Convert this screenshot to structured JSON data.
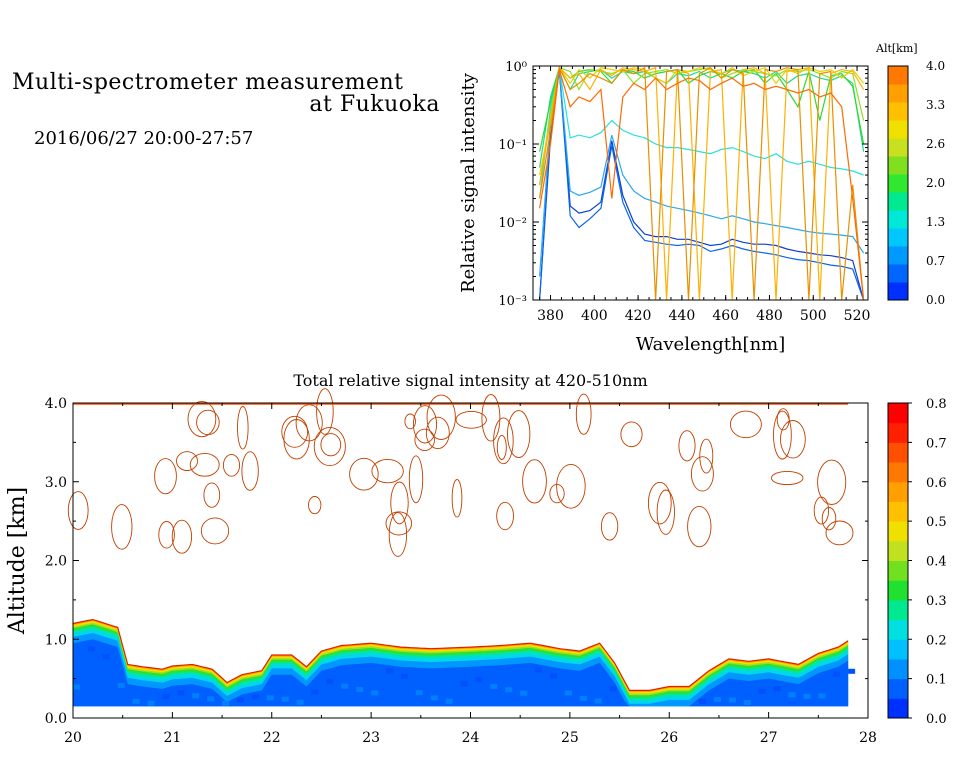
{
  "header": {
    "title_line1": "Multi-spectrometer measurement",
    "title_line2": "at Fukuoka",
    "date_range": "2016/06/27 20:00-27:57"
  },
  "chart_data": [
    {
      "type": "line",
      "title": "",
      "xlabel": "Wavelength[nm]",
      "ylabel": "Relative signal intensity",
      "yscale": "log",
      "xlim": [
        372,
        525
      ],
      "ylim": [
        0.001,
        1
      ],
      "x_ticks": [
        "380",
        "400",
        "420",
        "440",
        "460",
        "480",
        "500",
        "520"
      ],
      "y_ticks": [
        "10⁻³",
        "10⁻²",
        "10⁻¹",
        "10⁰"
      ],
      "colorbar": {
        "label": "Alt[km]",
        "ticks": [
          "0.0",
          "0.7",
          "1.3",
          "2.0",
          "2.6",
          "3.3",
          "4.0"
        ],
        "range": [
          0,
          4
        ],
        "colors": [
          "#0030ff",
          "#0066ff",
          "#0099ff",
          "#00c8ff",
          "#00e8d8",
          "#00e890",
          "#30e830",
          "#80e020",
          "#c8e020",
          "#f0e000",
          "#ffc000",
          "#ffa000",
          "#ff7800"
        ]
      },
      "x": [
        375,
        380,
        384,
        389,
        393,
        398,
        403,
        408,
        413,
        418,
        423,
        428,
        433,
        438,
        443,
        448,
        453,
        458,
        463,
        468,
        473,
        478,
        483,
        488,
        493,
        498,
        503,
        508,
        513,
        518,
        523
      ],
      "series": [
        {
          "altitude_km": 0.2,
          "color": "#0a3fd8",
          "values": [
            0.001,
            0.12,
            0.9,
            0.016,
            0.013,
            0.014,
            0.018,
            0.11,
            0.022,
            0.01,
            0.007,
            0.0065,
            0.0065,
            0.006,
            0.006,
            0.0055,
            0.005,
            0.0052,
            0.006,
            0.0055,
            0.0052,
            0.0052,
            0.005,
            0.0045,
            0.0042,
            0.004,
            0.0038,
            0.0037,
            0.0035,
            0.0032,
            0.001
          ]
        },
        {
          "altitude_km": 0.4,
          "color": "#0a66e8",
          "values": [
            0.001,
            0.15,
            0.9,
            0.012,
            0.0085,
            0.011,
            0.015,
            0.095,
            0.018,
            0.0085,
            0.0058,
            0.0055,
            0.0052,
            0.005,
            0.0052,
            0.005,
            0.0042,
            0.0045,
            0.005,
            0.0045,
            0.0042,
            0.004,
            0.0038,
            0.0035,
            0.0033,
            0.0032,
            0.003,
            0.0028,
            0.0027,
            0.0025,
            0.001
          ]
        },
        {
          "altitude_km": 0.9,
          "color": "#2aa8f0",
          "values": [
            0.002,
            0.2,
            0.92,
            0.025,
            0.022,
            0.024,
            0.028,
            0.13,
            0.04,
            0.025,
            0.02,
            0.018,
            0.016,
            0.015,
            0.014,
            0.013,
            0.012,
            0.011,
            0.012,
            0.011,
            0.01,
            0.0095,
            0.009,
            0.0085,
            0.008,
            0.0075,
            0.0072,
            0.007,
            0.0068,
            0.0065,
            0.004
          ]
        },
        {
          "altitude_km": 1.3,
          "color": "#2ae0e0",
          "values": [
            0.02,
            0.3,
            0.95,
            0.12,
            0.13,
            0.12,
            0.14,
            0.2,
            0.15,
            0.13,
            0.12,
            0.1,
            0.09,
            0.09,
            0.085,
            0.08,
            0.075,
            0.085,
            0.09,
            0.08,
            0.07,
            0.065,
            0.075,
            0.06,
            0.055,
            0.06,
            0.055,
            0.05,
            0.048,
            0.045,
            0.04
          ]
        },
        {
          "altitude_km": 1.7,
          "color": "#20d890",
          "values": [
            0.05,
            0.4,
            0.95,
            0.5,
            0.8,
            0.85,
            0.9,
            0.7,
            0.85,
            0.8,
            0.85,
            0.7,
            0.6,
            0.8,
            0.75,
            0.85,
            0.7,
            0.8,
            0.9,
            0.85,
            0.8,
            0.7,
            0.85,
            0.6,
            0.75,
            0.8,
            0.7,
            0.65,
            0.75,
            0.6,
            0.08
          ]
        },
        {
          "altitude_km": 2.0,
          "color": "#30d830",
          "values": [
            0.08,
            0.35,
            0.95,
            0.7,
            0.85,
            0.9,
            0.85,
            0.6,
            0.9,
            0.85,
            0.7,
            0.8,
            0.85,
            0.9,
            0.6,
            0.75,
            0.85,
            0.8,
            0.7,
            0.85,
            0.9,
            0.6,
            0.8,
            0.5,
            0.3,
            0.85,
            0.2,
            0.75,
            0.8,
            0.55,
            0.1
          ]
        },
        {
          "altitude_km": 2.4,
          "color": "#90e020",
          "values": [
            0.03,
            0.25,
            0.95,
            0.85,
            0.5,
            0.9,
            0.85,
            0.8,
            0.9,
            0.6,
            0.8,
            0.85,
            0.9,
            0.8,
            0.85,
            0.9,
            0.95,
            0.7,
            0.8,
            0.9,
            0.85,
            0.8,
            0.75,
            0.9,
            0.85,
            0.9,
            0.8,
            0.7,
            0.85,
            0.8,
            0.2
          ]
        },
        {
          "altitude_km": 2.8,
          "color": "#e8d000",
          "values": [
            0.04,
            0.2,
            0.95,
            0.6,
            0.9,
            0.7,
            0.95,
            0.9,
            0.85,
            0.95,
            0.9,
            0.7,
            0.6,
            0.9,
            0.85,
            0.95,
            0.9,
            0.8,
            0.95,
            0.75,
            0.85,
            0.95,
            0.6,
            0.9,
            0.8,
            0.95,
            0.85,
            0.9,
            0.7,
            0.9,
            0.6
          ]
        },
        {
          "altitude_km": 3.1,
          "color": "#ffb000",
          "values": [
            0.03,
            0.2,
            0.95,
            0.7,
            0.8,
            0.5,
            0.9,
            0.75,
            0.95,
            0.9,
            0.85,
            0.95,
            0.001,
            0.9,
            0.8,
            0.001,
            0.85,
            0.9,
            0.001,
            0.9,
            0.95,
            0.8,
            0.001,
            0.85,
            0.9,
            0.95,
            0.001,
            0.8,
            0.9,
            0.85,
            0.5
          ]
        },
        {
          "altitude_km": 3.6,
          "color": "#e89000",
          "values": [
            0.02,
            0.15,
            0.95,
            0.5,
            0.6,
            0.8,
            0.7,
            0.6,
            0.9,
            0.8,
            0.95,
            0.001,
            0.85,
            0.9,
            0.001,
            0.8,
            0.95,
            0.7,
            0.9,
            0.8,
            0.001,
            0.9,
            0.85,
            0.95,
            0.9,
            0.001,
            0.8,
            0.85,
            0.001,
            0.03,
            0.001
          ]
        },
        {
          "altitude_km": 3.95,
          "color": "#ff6a00",
          "values": [
            0.015,
            0.1,
            0.9,
            0.3,
            0.4,
            0.35,
            0.5,
            0.02,
            0.4,
            0.6,
            0.5,
            0.7,
            0.5,
            0.6,
            0.7,
            0.65,
            0.5,
            0.6,
            0.7,
            0.55,
            0.6,
            0.5,
            0.55,
            0.5,
            0.45,
            0.5,
            0.4,
            0.45,
            0.3,
            0.02,
            0.001
          ]
        }
      ]
    },
    {
      "type": "heatmap",
      "title": "Total relative signal intensity at 420-510nm",
      "xlabel": "",
      "ylabel": "Altitude [km]",
      "xlim": [
        20,
        28
      ],
      "ylim": [
        0,
        4
      ],
      "x_ticks": [
        "20",
        "21",
        "22",
        "23",
        "24",
        "25",
        "26",
        "27",
        "28"
      ],
      "y_ticks": [
        "0.0",
        "1.0",
        "2.0",
        "3.0",
        "4.0"
      ],
      "data_x_range": [
        20,
        27.8
      ],
      "data_y_min_km": 0.15,
      "boundary_layer_top_km": {
        "x": [
          20.0,
          20.2,
          20.45,
          20.55,
          20.7,
          20.9,
          21.0,
          21.2,
          21.4,
          21.55,
          21.7,
          21.9,
          22.0,
          22.2,
          22.35,
          22.5,
          22.7,
          23.0,
          23.3,
          23.6,
          24.0,
          24.3,
          24.6,
          24.9,
          25.1,
          25.3,
          25.45,
          25.6,
          25.8,
          26.0,
          26.2,
          26.4,
          26.6,
          26.8,
          27.0,
          27.3,
          27.5,
          27.7,
          27.8
        ],
        "y": [
          1.2,
          1.25,
          1.15,
          0.68,
          0.65,
          0.62,
          0.66,
          0.68,
          0.62,
          0.45,
          0.55,
          0.6,
          0.8,
          0.8,
          0.65,
          0.85,
          0.92,
          0.95,
          0.9,
          0.88,
          0.9,
          0.92,
          0.95,
          0.88,
          0.85,
          0.95,
          0.7,
          0.35,
          0.35,
          0.4,
          0.4,
          0.6,
          0.75,
          0.72,
          0.75,
          0.68,
          0.82,
          0.9,
          0.98
        ]
      },
      "colorbar": {
        "ticks": [
          "0.0",
          "0.1",
          "0.2",
          "0.3",
          "0.4",
          "0.5",
          "0.6",
          "0.7",
          "0.8"
        ],
        "range": [
          0,
          0.8
        ],
        "colors": [
          "#0030ff",
          "#0060ff",
          "#0090ff",
          "#00c0ff",
          "#00e0e0",
          "#00e890",
          "#20e030",
          "#70e020",
          "#c0e020",
          "#f0e000",
          "#ffc000",
          "#ffa000",
          "#ff7800",
          "#ff5000",
          "#ff2000",
          "#ff0000"
        ]
      }
    }
  ]
}
